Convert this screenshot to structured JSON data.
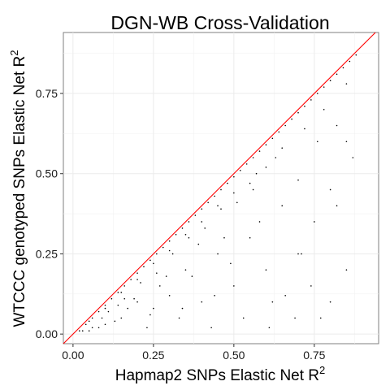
{
  "chart_data": {
    "type": "scatter",
    "title": "DGN-WB Cross-Validation",
    "xlabel": "Hapmap2 SNPs Elastic Net R",
    "xlabel_sup": "2",
    "ylabel": "WTCCC genotyped SNPs Elastic Net R",
    "ylabel_sup": "2",
    "xlim": [
      -0.03,
      0.95
    ],
    "ylim": [
      -0.03,
      0.94
    ],
    "x_ticks": [
      0.0,
      0.25,
      0.5,
      0.75
    ],
    "x_tick_labels": [
      "0.00",
      "0.25",
      "0.50",
      "0.75"
    ],
    "y_ticks": [
      0.0,
      0.25,
      0.5,
      0.75
    ],
    "y_tick_labels": [
      "0.00",
      "0.25",
      "0.50",
      "0.75"
    ],
    "grid": true,
    "reference_line": {
      "slope": 1,
      "intercept": 0,
      "color": "#ff0000"
    },
    "colors": {
      "points": "#000000",
      "grid": "#ebebeb",
      "panel_border": "#7f7f7f"
    },
    "points": {
      "description_of_values": "x = Hapmap2 R2, y = WTCCC R2",
      "x": [
        0.88,
        0.86,
        0.84,
        0.82,
        0.8,
        0.78,
        0.76,
        0.74,
        0.72,
        0.7,
        0.68,
        0.66,
        0.64,
        0.62,
        0.6,
        0.58,
        0.56,
        0.54,
        0.52,
        0.5,
        0.48,
        0.46,
        0.44,
        0.42,
        0.4,
        0.38,
        0.36,
        0.34,
        0.32,
        0.3,
        0.28,
        0.26,
        0.24,
        0.22,
        0.2,
        0.18,
        0.16,
        0.14,
        0.12,
        0.1,
        0.08,
        0.06,
        0.04,
        0.02,
        0.85,
        0.78,
        0.72,
        0.65,
        0.6,
        0.55,
        0.5,
        0.45,
        0.4,
        0.35,
        0.3,
        0.25,
        0.2,
        0.15,
        0.1,
        0.05,
        0.87,
        0.82,
        0.76,
        0.7,
        0.63,
        0.57,
        0.51,
        0.46,
        0.41,
        0.36,
        0.31,
        0.26,
        0.21,
        0.16,
        0.11,
        0.06,
        0.85,
        0.8,
        0.75,
        0.7,
        0.65,
        0.6,
        0.55,
        0.5,
        0.45,
        0.4,
        0.35,
        0.3,
        0.25,
        0.2,
        0.15,
        0.1,
        0.05,
        0.85,
        0.8,
        0.74,
        0.69,
        0.62,
        0.58,
        0.53,
        0.47,
        0.43,
        0.37,
        0.33,
        0.27,
        0.23,
        0.17,
        0.13,
        0.08,
        0.03,
        0.82,
        0.77,
        0.71,
        0.66,
        0.61,
        0.56,
        0.49,
        0.44,
        0.39,
        0.34,
        0.29,
        0.24,
        0.19,
        0.14,
        0.09
      ],
      "y": [
        0.87,
        0.85,
        0.83,
        0.81,
        0.79,
        0.77,
        0.75,
        0.73,
        0.71,
        0.69,
        0.67,
        0.65,
        0.63,
        0.61,
        0.59,
        0.57,
        0.55,
        0.53,
        0.51,
        0.49,
        0.47,
        0.45,
        0.43,
        0.41,
        0.39,
        0.37,
        0.35,
        0.33,
        0.31,
        0.29,
        0.27,
        0.25,
        0.23,
        0.21,
        0.19,
        0.17,
        0.15,
        0.13,
        0.11,
        0.09,
        0.07,
        0.05,
        0.03,
        0.01,
        0.78,
        0.7,
        0.64,
        0.58,
        0.52,
        0.47,
        0.44,
        0.4,
        0.35,
        0.31,
        0.26,
        0.22,
        0.17,
        0.13,
        0.08,
        0.04,
        0.55,
        0.65,
        0.6,
        0.48,
        0.55,
        0.5,
        0.41,
        0.39,
        0.33,
        0.3,
        0.25,
        0.19,
        0.16,
        0.11,
        0.07,
        0.02,
        0.2,
        0.45,
        0.35,
        0.25,
        0.4,
        0.2,
        0.3,
        0.15,
        0.25,
        0.1,
        0.2,
        0.12,
        0.08,
        0.1,
        0.05,
        0.03,
        0.01,
        0.6,
        0.1,
        0.15,
        0.05,
        0.1,
        0.35,
        0.05,
        0.3,
        0.02,
        0.18,
        0.05,
        0.15,
        0.02,
        0.08,
        0.04,
        0.02,
        0.01,
        0.4,
        0.05,
        0.25,
        0.12,
        0.02,
        0.45,
        0.22,
        0.12,
        0.28,
        0.08,
        0.18,
        0.06,
        0.11,
        0.09,
        0.05
      ]
    }
  }
}
